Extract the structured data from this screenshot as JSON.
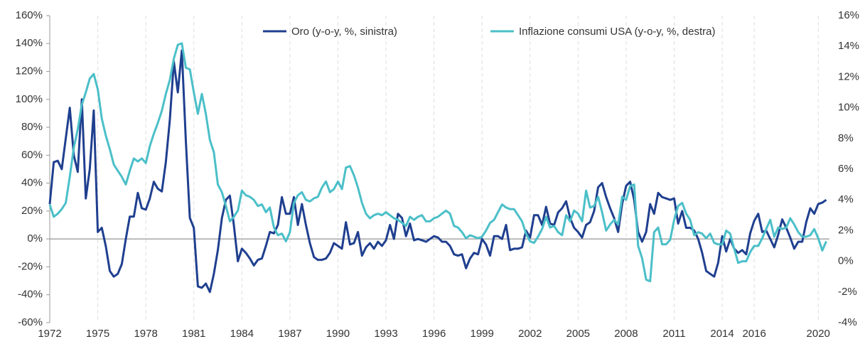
{
  "chart_data": {
    "type": "line",
    "x": [
      1972,
      1972.25,
      1972.5,
      1972.75,
      1973,
      1973.25,
      1973.5,
      1973.75,
      1974,
      1974.25,
      1974.5,
      1974.75,
      1975,
      1975.25,
      1975.5,
      1975.75,
      1976,
      1976.25,
      1976.5,
      1976.75,
      1977,
      1977.25,
      1977.5,
      1977.75,
      1978,
      1978.25,
      1978.5,
      1978.75,
      1979,
      1979.25,
      1979.5,
      1979.75,
      1980,
      1980.25,
      1980.5,
      1980.75,
      1981,
      1981.25,
      1981.5,
      1981.75,
      1982,
      1982.25,
      1982.5,
      1982.75,
      1983,
      1983.25,
      1983.5,
      1983.75,
      1984,
      1984.25,
      1984.5,
      1984.75,
      1985,
      1985.25,
      1985.5,
      1985.75,
      1986,
      1986.25,
      1986.5,
      1986.75,
      1987,
      1987.25,
      1987.5,
      1987.75,
      1988,
      1988.25,
      1988.5,
      1988.75,
      1989,
      1989.25,
      1989.5,
      1989.75,
      1990,
      1990.25,
      1990.5,
      1990.75,
      1991,
      1991.25,
      1991.5,
      1991.75,
      1992,
      1992.25,
      1992.5,
      1992.75,
      1993,
      1993.25,
      1993.5,
      1993.75,
      1994,
      1994.25,
      1994.5,
      1994.75,
      1995,
      1995.25,
      1995.5,
      1995.75,
      1996,
      1996.25,
      1996.5,
      1996.75,
      1997,
      1997.25,
      1997.5,
      1997.75,
      1998,
      1998.25,
      1998.5,
      1998.75,
      1999,
      1999.25,
      1999.5,
      1999.75,
      2000,
      2000.25,
      2000.5,
      2000.75,
      2001,
      2001.25,
      2001.5,
      2001.75,
      2002,
      2002.25,
      2002.5,
      2002.75,
      2003,
      2003.25,
      2003.5,
      2003.75,
      2004,
      2004.25,
      2004.5,
      2004.75,
      2005,
      2005.25,
      2005.5,
      2005.75,
      2006,
      2006.25,
      2006.5,
      2006.75,
      2007,
      2007.25,
      2007.5,
      2007.75,
      2008,
      2008.25,
      2008.5,
      2008.75,
      2009,
      2009.25,
      2009.5,
      2009.75,
      2010,
      2010.25,
      2010.5,
      2010.75,
      2011,
      2011.25,
      2011.5,
      2011.75,
      2012,
      2012.25,
      2012.5,
      2012.75,
      2013,
      2013.25,
      2013.5,
      2013.75,
      2014,
      2014.25,
      2014.5,
      2014.75,
      2015,
      2015.25,
      2015.5,
      2015.75,
      2016,
      2016.25,
      2016.5,
      2016.75,
      2017,
      2017.25,
      2017.5,
      2017.75,
      2018,
      2018.25,
      2018.5,
      2018.75,
      2019,
      2019.25,
      2019.5,
      2019.75,
      2020,
      2020.25,
      2020.5
    ],
    "series": [
      {
        "name": "Oro (y-o-y, %, sinistra)",
        "color": "#1f3f8f",
        "axis": "y",
        "values": [
          25,
          55,
          56,
          50,
          72,
          94,
          60,
          48,
          100,
          29,
          50,
          92,
          5,
          8,
          -5,
          -23,
          -27,
          -25,
          -18,
          0,
          16,
          16,
          33,
          22,
          21,
          29,
          41,
          36,
          34,
          55,
          85,
          127,
          105,
          135,
          70,
          15,
          8,
          -34,
          -35,
          -32,
          -38,
          -25,
          -8,
          15,
          28,
          31,
          10,
          -16,
          -7,
          -10,
          -14,
          -19,
          -15,
          -14,
          -5,
          5,
          4,
          10,
          30,
          18,
          18,
          30,
          10,
          25,
          10,
          -3,
          -13,
          -15,
          -15,
          -14,
          -10,
          -3,
          -5,
          -7,
          12,
          -4,
          -3,
          5,
          -12,
          -6,
          -3,
          -7,
          -2,
          -5,
          -1,
          10,
          0,
          18,
          15,
          2,
          11,
          -1,
          0,
          -1,
          -2,
          0,
          2,
          1,
          -2,
          -2,
          -5,
          -11,
          -12,
          -11,
          -21,
          -14,
          -10,
          -11,
          0,
          -4,
          -12,
          2,
          2,
          0,
          10,
          -8,
          -7,
          -7,
          -6,
          6,
          1,
          17,
          17,
          10,
          23,
          11,
          10,
          19,
          22,
          27,
          15,
          8,
          5,
          1,
          10,
          12,
          20,
          37,
          40,
          30,
          22,
          15,
          5,
          25,
          38,
          41,
          28,
          5,
          -2,
          5,
          25,
          18,
          33,
          30,
          29,
          28,
          29,
          11,
          20,
          8,
          8,
          6,
          0,
          -10,
          -23,
          -25,
          -27,
          -17,
          2,
          -9,
          0,
          -7,
          -10,
          -8,
          -11,
          4,
          13,
          18,
          5,
          6,
          0,
          -6,
          3,
          14,
          8,
          1,
          -7,
          -2,
          -2,
          12,
          22,
          18,
          25,
          26,
          28
        ]
      },
      {
        "name": "Inflazione consumi USA (y-o-y, %, destra)",
        "color": "#4bbfc8",
        "axis": "y2",
        "values": [
          3.7,
          2.9,
          3.1,
          3.4,
          3.8,
          5.5,
          7.4,
          8.6,
          10.2,
          11.0,
          11.9,
          12.2,
          11.2,
          9.3,
          8.2,
          7.3,
          6.3,
          5.9,
          5.5,
          5.0,
          5.9,
          6.7,
          6.5,
          6.7,
          6.4,
          7.5,
          8.3,
          9.0,
          9.8,
          10.9,
          11.8,
          13.2,
          14.1,
          14.2,
          12.6,
          12.5,
          11.0,
          9.6,
          10.9,
          9.6,
          7.9,
          7.1,
          5.0,
          4.5,
          3.6,
          2.6,
          2.9,
          3.3,
          4.6,
          4.3,
          4.2,
          4.0,
          3.6,
          3.7,
          3.2,
          3.5,
          2.2,
          1.7,
          1.8,
          1.3,
          1.9,
          3.8,
          4.3,
          4.5,
          4.0,
          3.9,
          4.1,
          4.2,
          4.8,
          5.2,
          4.5,
          4.7,
          5.2,
          4.7,
          6.1,
          6.2,
          5.6,
          4.8,
          3.8,
          3.1,
          2.8,
          3.0,
          3.1,
          3.0,
          3.2,
          3.0,
          2.8,
          2.7,
          2.5,
          2.3,
          2.9,
          2.7,
          2.9,
          3.0,
          2.6,
          2.6,
          2.8,
          2.9,
          3.1,
          3.3,
          3.1,
          2.3,
          2.2,
          1.9,
          1.5,
          1.7,
          1.6,
          1.5,
          1.6,
          2.0,
          2.5,
          2.7,
          3.2,
          3.7,
          3.5,
          3.4,
          3.4,
          3.0,
          2.6,
          1.8,
          1.3,
          1.2,
          1.6,
          2.1,
          2.9,
          2.2,
          2.3,
          1.9,
          1.7,
          3.0,
          2.6,
          3.3,
          3.1,
          2.6,
          4.6,
          3.5,
          3.6,
          4.2,
          3.2,
          2.0,
          2.4,
          2.7,
          2.4,
          4.2,
          4.0,
          4.9,
          5.0,
          1.0,
          0.2,
          -1.2,
          -1.3,
          1.9,
          2.2,
          1.1,
          1.1,
          1.4,
          2.7,
          3.6,
          3.8,
          3.1,
          2.7,
          1.7,
          1.9,
          1.8,
          1.5,
          1.8,
          1.2,
          1.1,
          1.1,
          2.0,
          1.8,
          0.8,
          -0.1,
          0.0,
          0.0,
          0.6,
          1.0,
          1.0,
          1.5,
          2.1,
          2.7,
          1.6,
          2.2,
          2.1,
          2.2,
          2.8,
          2.4,
          1.9,
          1.6,
          1.6,
          1.7,
          2.1,
          1.5,
          0.7,
          1.3
        ]
      }
    ],
    "xlim": [
      1972,
      2020.7
    ],
    "xticks": [
      1972,
      1975,
      1978,
      1981,
      1984,
      1987,
      1990,
      1993,
      1996,
      1999,
      2002,
      2005,
      2008,
      2011,
      2014,
      2016,
      2020
    ],
    "ylim": [
      -60,
      160
    ],
    "yticks": [
      {
        "value": -60,
        "label": "-60%"
      },
      {
        "value": -40,
        "label": "-40%"
      },
      {
        "value": -20,
        "label": "-20%"
      },
      {
        "value": 0,
        "label": "0%"
      },
      {
        "value": 20,
        "label": "20%"
      },
      {
        "value": 40,
        "label": "40%"
      },
      {
        "value": 60,
        "label": "60%"
      },
      {
        "value": 80,
        "label": "80%"
      },
      {
        "value": 100,
        "label": "100%"
      },
      {
        "value": 120,
        "label": "120%"
      },
      {
        "value": 140,
        "label": "140%"
      },
      {
        "value": 160,
        "label": "160%"
      }
    ],
    "y2lim": [
      -4,
      16
    ],
    "y2ticks": [
      {
        "value": -4,
        "label": "-4%"
      },
      {
        "value": -2,
        "label": "-2%"
      },
      {
        "value": 0,
        "label": "0%"
      },
      {
        "value": 2,
        "label": "2%"
      },
      {
        "value": 4,
        "label": "4%"
      },
      {
        "value": 6,
        "label": "6%"
      },
      {
        "value": 8,
        "label": "8%"
      },
      {
        "value": 10,
        "label": "10%"
      },
      {
        "value": 12,
        "label": "12%"
      },
      {
        "value": 14,
        "label": "14%"
      },
      {
        "value": 16,
        "label": "16%"
      }
    ],
    "legend": "top"
  }
}
